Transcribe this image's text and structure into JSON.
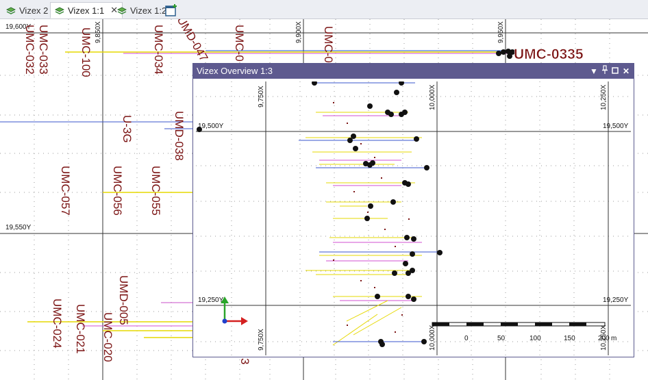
{
  "tabs": [
    {
      "label": "Vizex 2",
      "active": false
    },
    {
      "label": "Vizex 1:1",
      "active": true,
      "close": "✕"
    },
    {
      "label": "Vizex 1:2",
      "active": false
    }
  ],
  "main": {
    "grid_labels": {
      "y_top": "19,600Y",
      "y_mid": "19,550Y",
      "x1": "9,850X",
      "x2": "9,900X",
      "x3": "9,950X"
    },
    "hole_labels": {
      "umc033": "UMC-033",
      "umc032": "UMC-032",
      "umc100": "UMC-100",
      "umc034": "UMC-034",
      "umd047": "UMD-047",
      "u3g": "U-3G",
      "umd038": "UMD-038",
      "umc057": "UMC-057",
      "umc056": "UMC-056",
      "umc055": "UMC-055",
      "umd005": "UMD-005",
      "umc021": "UMC-021",
      "umc020": "UMC-020",
      "umc024": "UMC-024",
      "umc0335": "UMC-0335",
      "small3": "3",
      "umc_trunc1": "UMC-0",
      "umc_trunc2": "UMC-0"
    }
  },
  "overview": {
    "title": "Vizex Overview 1:3",
    "buttons": {
      "dropdown": "▼",
      "pin": "📌",
      "maximize": "□",
      "close": "✕"
    },
    "grid_labels": {
      "x1": "9,750X",
      "x2": "10,000X",
      "x3": "10,250X",
      "y1_left": "19,500Y",
      "y1_right": "19,500Y",
      "y2_left": "19,250Y",
      "y2_right": "19,250Y",
      "x1_bottom": "9,750X",
      "x2_bottom": "10,000X",
      "x3_bottom": "10,250X"
    },
    "scale_bar": {
      "ticks": [
        "0",
        "50",
        "100",
        "150",
        "200"
      ],
      "unit": "m"
    }
  }
}
